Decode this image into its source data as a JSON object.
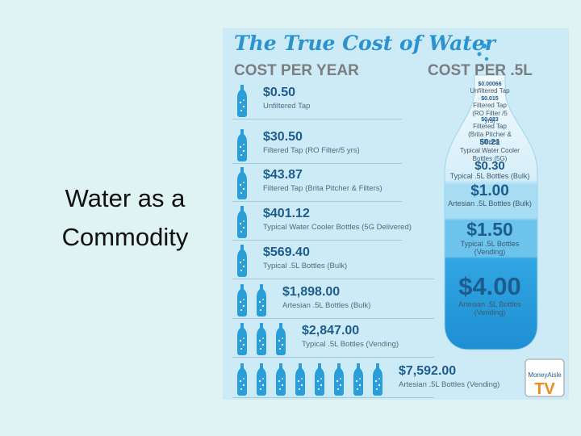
{
  "slide": {
    "title": "Water as a Commodity"
  },
  "infographic": {
    "title": "The True Cost of Water",
    "left_header": "COST PER YEAR",
    "right_header": "COST PER .5L",
    "per_year": [
      {
        "value": "$0.50",
        "label": "Unfiltered Tap"
      },
      {
        "value": "$30.50",
        "label": "Filtered Tap (RO Filter/5 yrs)"
      },
      {
        "value": "$43.87",
        "label": "Filtered Tap (Brita Pitcher & Filters)"
      },
      {
        "value": "$401.12",
        "label": "Typical Water Cooler Bottles (5G Delivered)"
      },
      {
        "value": "$569.40",
        "label": "Typical .5L Bottles (Bulk)"
      },
      {
        "value": "$1,898.00",
        "label": "Artesian .5L Bottles (Bulk)"
      },
      {
        "value": "$2,847.00",
        "label": "Typical .5L Bottles (Vending)"
      },
      {
        "value": "$7,592.00",
        "label": "Artesian .5L Bottles (Vending)"
      }
    ],
    "per_half_liter": [
      {
        "value": "$0.00066",
        "label": "Unfiltered Tap"
      },
      {
        "value": "$0.015",
        "label": "Filtered Tap (RO Filter /5 yrs)"
      },
      {
        "value": "$0.023",
        "label": "Filtered Tap (Brita Pitcher & Filters)"
      },
      {
        "value": "$0.21",
        "label": "Typical Water Cooler Bottles (5G)"
      },
      {
        "value": "$0.30",
        "label": "Typical .5L Bottles (Bulk)"
      },
      {
        "value": "$1.00",
        "label": "Artesian .5L Bottles (Bulk)"
      },
      {
        "value": "$1.50",
        "label": "Typical .5L Bottles (Vending)"
      },
      {
        "value": "$4.00",
        "label": "Artesian .5L Bottles (Vending)"
      }
    ],
    "logo": {
      "brand": "MoneyAisle",
      "tv": "TV"
    }
  }
}
